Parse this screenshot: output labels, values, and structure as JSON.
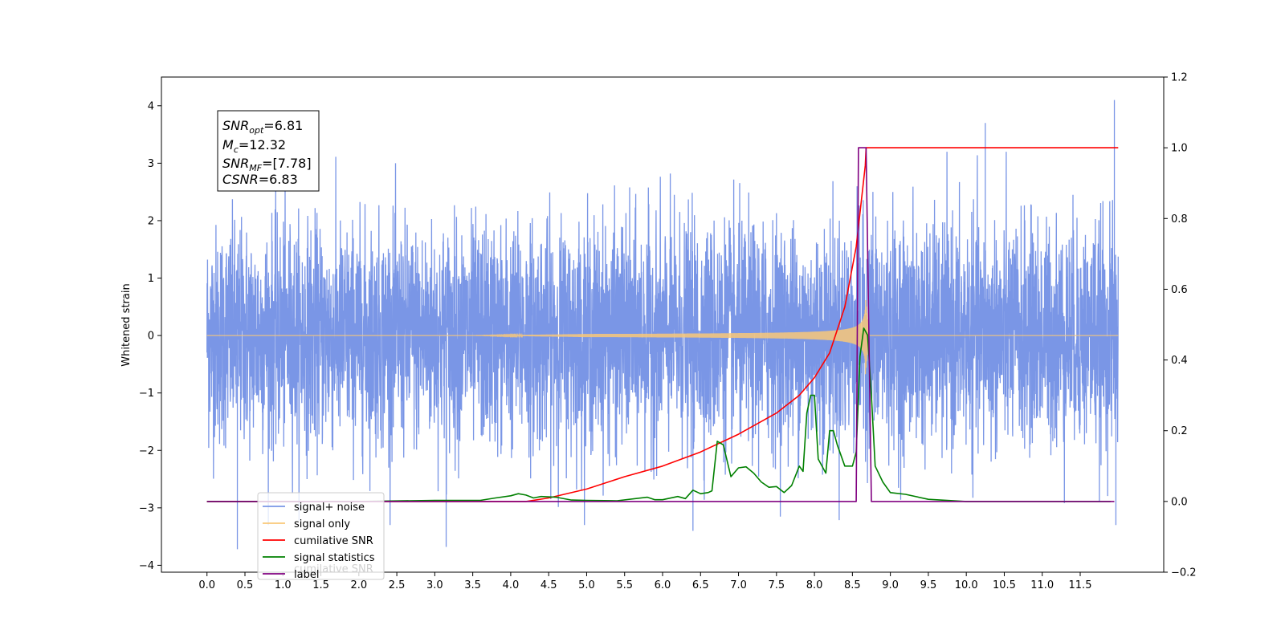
{
  "chart_data": {
    "type": "line",
    "title": "",
    "xlabel": "",
    "ylabel": "Whitened strain",
    "xlim": [
      -0.6,
      12.6
    ],
    "ylim": [
      -4.12,
      4.5
    ],
    "y2lim": [
      -0.2,
      1.2
    ],
    "grid": false,
    "legend_placement": "lower-left",
    "x_ticks": [
      "0.0",
      "0.5",
      "1.0",
      "1.5",
      "2.0",
      "2.5",
      "3.0",
      "3.5",
      "4.0",
      "4.5",
      "5.0",
      "5.5",
      "6.0",
      "6.5",
      "7.0",
      "7.5",
      "8.0",
      "8.5",
      "9.0",
      "9.5",
      "10.0",
      "10.5",
      "11.0",
      "11.5"
    ],
    "y_ticks": [
      "4",
      "3",
      "2",
      "1",
      "0",
      "−1",
      "−2",
      "−3",
      "−4"
    ],
    "y2_ticks": [
      "1.2",
      "1.0",
      "0.8",
      "0.6",
      "0.4",
      "0.2",
      "0.0",
      "−0.2"
    ],
    "annotation": {
      "snr_opt": {
        "sym": "SNR",
        "sub": "opt",
        "value": "=6.81"
      },
      "mc": {
        "sym": "M",
        "sub": "c",
        "value": "=12.32"
      },
      "snr_mf": {
        "sym": "SNR",
        "sub": "MF",
        "value": "=[7.78]"
      },
      "csnr": {
        "sym": "CSNR",
        "value": "=6.83"
      }
    },
    "series": [
      {
        "name": "signal+ noise",
        "color": "#7a96e6",
        "axis": "left",
        "x_range": [
          0.0,
          12.0
        ],
        "approx_amplitude": 1.7,
        "peak_max": 4.1,
        "peak_min": -3.75
      },
      {
        "name": "signal only",
        "color": "#f9c878",
        "axis": "left",
        "x_range": [
          0.0,
          12.0
        ],
        "chirp_start": 5.0,
        "merger": 8.67,
        "peak_amplitude": 0.7
      },
      {
        "name": "cumilative SNR",
        "color": "#ff0000",
        "axis": "right",
        "x": [
          0.0,
          4.2,
          4.5,
          5.0,
          5.5,
          6.0,
          6.5,
          7.0,
          7.5,
          7.8,
          8.0,
          8.2,
          8.4,
          8.55,
          8.67,
          8.68,
          12.0
        ],
        "values": [
          0.0,
          0.0,
          0.01,
          0.035,
          0.07,
          0.1,
          0.14,
          0.19,
          0.25,
          0.3,
          0.35,
          0.42,
          0.55,
          0.72,
          0.95,
          1.0,
          1.0
        ]
      },
      {
        "name": "signal statistics",
        "color": "#008000",
        "axis": "right",
        "x": [
          0.0,
          2.0,
          3.0,
          3.6,
          3.8,
          4.0,
          4.1,
          4.2,
          4.3,
          4.4,
          4.6,
          4.8,
          5.0,
          5.4,
          5.8,
          5.9,
          6.0,
          6.2,
          6.3,
          6.4,
          6.5,
          6.6,
          6.65,
          6.72,
          6.8,
          6.9,
          7.0,
          7.1,
          7.2,
          7.3,
          7.4,
          7.5,
          7.6,
          7.7,
          7.8,
          7.85,
          7.9,
          7.95,
          8.0,
          8.05,
          8.1,
          8.15,
          8.2,
          8.25,
          8.3,
          8.4,
          8.5,
          8.55,
          8.6,
          8.65,
          8.7,
          8.75,
          8.8,
          8.9,
          9.0,
          9.2,
          9.5,
          10.0,
          11.9
        ],
        "values": [
          0.0,
          0.0,
          0.003,
          0.003,
          0.01,
          0.016,
          0.022,
          0.018,
          0.01,
          0.014,
          0.012,
          0.004,
          0.003,
          0.002,
          0.012,
          0.005,
          0.005,
          0.014,
          0.008,
          0.032,
          0.022,
          0.025,
          0.03,
          0.17,
          0.16,
          0.07,
          0.095,
          0.098,
          0.08,
          0.055,
          0.04,
          0.042,
          0.025,
          0.045,
          0.1,
          0.085,
          0.25,
          0.3,
          0.3,
          0.12,
          0.1,
          0.08,
          0.2,
          0.2,
          0.16,
          0.1,
          0.1,
          0.14,
          0.41,
          0.49,
          0.47,
          0.3,
          0.1,
          0.055,
          0.025,
          0.02,
          0.006,
          0.0,
          0.0
        ]
      },
      {
        "name": "label",
        "color": "#800080",
        "axis": "right",
        "x": [
          0.0,
          8.55,
          8.58,
          8.68,
          8.75,
          11.95
        ],
        "values": [
          0.0,
          0.0,
          1.0,
          1.0,
          0.0,
          0.0
        ]
      }
    ],
    "legend_overlap_text": "cumilative SNR"
  }
}
